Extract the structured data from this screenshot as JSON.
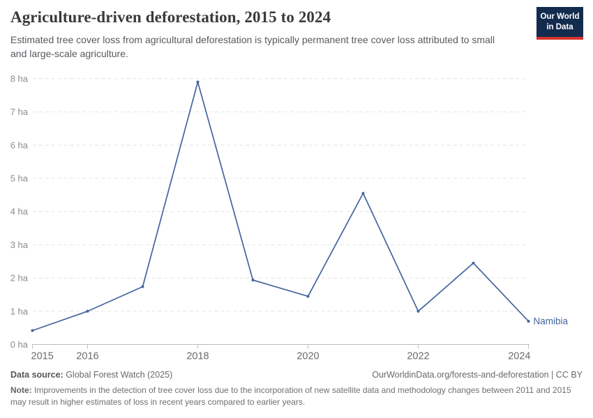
{
  "header": {
    "title": "Agriculture-driven deforestation, 2015 to 2024",
    "subtitle": "Estimated tree cover loss from agricultural deforestation is typically permanent tree cover loss attributed to small and large-scale agriculture.",
    "logo": {
      "line1": "Our World",
      "line2": "in Data",
      "bg_color": "#132c4e",
      "accent_color": "#d8352e"
    }
  },
  "chart_data": {
    "type": "line",
    "title": "Agriculture-driven deforestation, 2015 to 2024",
    "unit": "ha",
    "xlabel": "",
    "ylabel": "",
    "x": [
      2015,
      2016,
      2017,
      2018,
      2019,
      2020,
      2021,
      2022,
      2023,
      2024
    ],
    "series": [
      {
        "name": "Namibia",
        "color": "#43639e",
        "values": [
          0.42,
          1.0,
          1.74,
          7.9,
          1.94,
          1.45,
          4.55,
          1.0,
          2.45,
          0.7
        ]
      }
    ],
    "end_label": "Namibia",
    "ylim": [
      0,
      8
    ],
    "ytick_labels": [
      "0 ha",
      "1 ha",
      "2 ha",
      "3 ha",
      "4 ha",
      "5 ha",
      "6 ha",
      "7 ha",
      "8 ha"
    ],
    "xticks": [
      2015,
      2016,
      2018,
      2020,
      2022,
      2024
    ],
    "grid": "horizontal-dashed",
    "legend_position": "end-of-line",
    "colors": {
      "gridline": "#e2e2e2",
      "axis": "#bdbdbd",
      "ytick_label": "#8b8b8b",
      "xtick_label": "#6b6b6b"
    }
  },
  "footer": {
    "datasource_label": "Data source:",
    "datasource_value": " Global Forest Watch (2025)",
    "link": "OurWorldinData.org/forests-and-deforestation | CC BY",
    "note_label": "Note:",
    "note_text": " Improvements in the detection of tree cover loss due to the incorporation of new satellite data and methodology changes between 2011 and 2015 may result in higher estimates of loss in recent years compared to earlier years."
  }
}
